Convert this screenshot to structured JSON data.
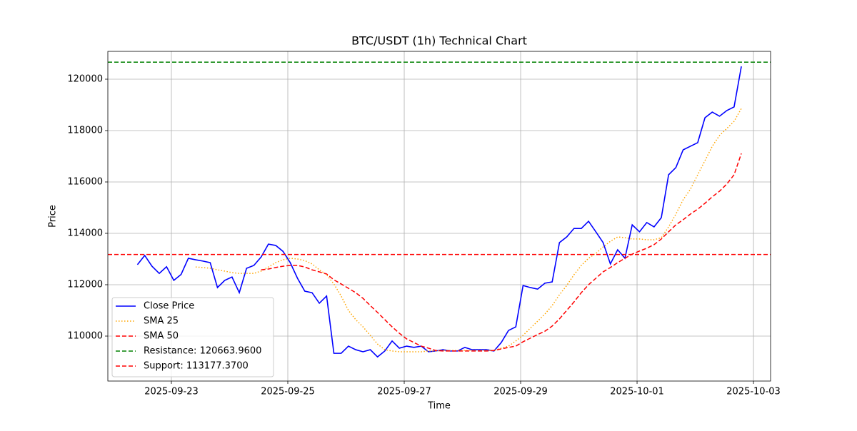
{
  "chart_data": {
    "type": "line",
    "title": "BTC/USDT (1h) Technical Chart",
    "x_label": "Time",
    "y_label": "Price",
    "x": [
      "2025-09-22 10:00",
      "2025-09-22 13:00",
      "2025-09-22 16:00",
      "2025-09-22 19:00",
      "2025-09-22 22:00",
      "2025-09-23 01:00",
      "2025-09-23 04:00",
      "2025-09-23 07:00",
      "2025-09-23 10:00",
      "2025-09-23 13:00",
      "2025-09-23 16:00",
      "2025-09-23 19:00",
      "2025-09-23 22:00",
      "2025-09-24 01:00",
      "2025-09-24 04:00",
      "2025-09-24 07:00",
      "2025-09-24 10:00",
      "2025-09-24 13:00",
      "2025-09-24 16:00",
      "2025-09-24 19:00",
      "2025-09-24 22:00",
      "2025-09-25 01:00",
      "2025-09-25 04:00",
      "2025-09-25 07:00",
      "2025-09-25 10:00",
      "2025-09-25 13:00",
      "2025-09-25 16:00",
      "2025-09-25 19:00",
      "2025-09-25 22:00",
      "2025-09-26 01:00",
      "2025-09-26 04:00",
      "2025-09-26 07:00",
      "2025-09-26 10:00",
      "2025-09-26 13:00",
      "2025-09-26 16:00",
      "2025-09-26 19:00",
      "2025-09-26 22:00",
      "2025-09-27 01:00",
      "2025-09-27 04:00",
      "2025-09-27 07:00",
      "2025-09-27 10:00",
      "2025-09-27 13:00",
      "2025-09-27 16:00",
      "2025-09-27 19:00",
      "2025-09-27 22:00",
      "2025-09-28 01:00",
      "2025-09-28 04:00",
      "2025-09-28 07:00",
      "2025-09-28 10:00",
      "2025-09-28 13:00",
      "2025-09-28 16:00",
      "2025-09-28 19:00",
      "2025-09-28 22:00",
      "2025-09-29 01:00",
      "2025-09-29 04:00",
      "2025-09-29 07:00",
      "2025-09-29 10:00",
      "2025-09-29 13:00",
      "2025-09-29 16:00",
      "2025-09-29 19:00",
      "2025-09-29 22:00",
      "2025-09-30 01:00",
      "2025-09-30 04:00",
      "2025-09-30 07:00",
      "2025-09-30 10:00",
      "2025-09-30 13:00",
      "2025-09-30 16:00",
      "2025-09-30 19:00",
      "2025-09-30 22:00",
      "2025-10-01 01:00",
      "2025-10-01 04:00",
      "2025-10-01 07:00",
      "2025-10-01 10:00",
      "2025-10-01 13:00",
      "2025-10-01 16:00",
      "2025-10-01 19:00",
      "2025-10-01 22:00",
      "2025-10-02 01:00",
      "2025-10-02 04:00",
      "2025-10-02 07:00",
      "2025-10-02 10:00",
      "2025-10-02 13:00",
      "2025-10-02 16:00",
      "2025-10-02 19:00"
    ],
    "series": [
      {
        "name": "Close Price",
        "color": "#0000ff",
        "style": "solid",
        "values": [
          112780,
          113140,
          112720,
          112440,
          112700,
          112170,
          112400,
          113030,
          112970,
          112920,
          112860,
          111890,
          112170,
          112300,
          111690,
          112640,
          112750,
          113080,
          113580,
          113530,
          113300,
          112860,
          112250,
          111750,
          111690,
          111280,
          111560,
          109330,
          109330,
          109610,
          109470,
          109390,
          109470,
          109190,
          109420,
          109810,
          109530,
          109610,
          109560,
          109610,
          109390,
          109420,
          109470,
          109420,
          109420,
          109560,
          109470,
          109470,
          109470,
          109420,
          109750,
          110220,
          110360,
          111970,
          111890,
          111830,
          112060,
          112110,
          113640,
          113860,
          114190,
          114190,
          114470,
          114060,
          113640,
          112810,
          113360,
          113030,
          114330,
          114060,
          114420,
          114250,
          114610,
          116280,
          116560,
          117250,
          117390,
          117530,
          118500,
          118720,
          118560,
          118780,
          118920,
          120500
        ]
      },
      {
        "name": "SMA 25",
        "color": "#ffa500",
        "style": "dotted",
        "values": [
          null,
          null,
          null,
          null,
          null,
          null,
          null,
          null,
          112690,
          112670,
          112640,
          112580,
          112530,
          112470,
          112440,
          112440,
          112440,
          112530,
          112690,
          112860,
          112970,
          113030,
          113000,
          112940,
          112810,
          112580,
          112390,
          112030,
          111560,
          111000,
          110640,
          110360,
          110030,
          109690,
          109470,
          109420,
          109390,
          109390,
          109390,
          109390,
          109420,
          109420,
          109440,
          109440,
          109440,
          109440,
          109440,
          109440,
          109440,
          109440,
          109530,
          109610,
          109810,
          110030,
          110310,
          110580,
          110860,
          111190,
          111610,
          111970,
          112390,
          112750,
          113030,
          113220,
          113470,
          113690,
          113860,
          113830,
          113780,
          113780,
          113750,
          113750,
          113830,
          114250,
          114750,
          115310,
          115720,
          116280,
          116830,
          117390,
          117810,
          118080,
          118360,
          118860
        ]
      },
      {
        "name": "SMA 50",
        "color": "#ff0000",
        "style": "dashed",
        "values": [
          null,
          null,
          null,
          null,
          null,
          null,
          null,
          null,
          null,
          null,
          null,
          null,
          null,
          null,
          null,
          null,
          null,
          112580,
          112610,
          112670,
          112720,
          112750,
          112750,
          112690,
          112580,
          112500,
          112420,
          112190,
          112030,
          111860,
          111690,
          111470,
          111190,
          110920,
          110640,
          110360,
          110110,
          109890,
          109750,
          109610,
          109530,
          109440,
          109420,
          109420,
          109420,
          109420,
          109420,
          109420,
          109420,
          109440,
          109500,
          109560,
          109610,
          109780,
          109920,
          110060,
          110190,
          110390,
          110670,
          111000,
          111330,
          111690,
          112000,
          112250,
          112500,
          112670,
          112860,
          113030,
          113190,
          113310,
          113420,
          113560,
          113780,
          114060,
          114330,
          114530,
          114750,
          114940,
          115170,
          115420,
          115640,
          115920,
          116280,
          117110
        ]
      }
    ],
    "hlines": [
      {
        "name": "Resistance: 120663.9600",
        "value": 120663.96,
        "color": "#008000",
        "style": "dashed"
      },
      {
        "name": "Support: 113177.3700",
        "value": 113177.37,
        "color": "#ff0000",
        "style": "dashed"
      }
    ],
    "xlim": [
      "2025-09-21 21:48",
      "2025-10-03 07:03"
    ],
    "xticks": [
      "2025-09-23",
      "2025-09-25",
      "2025-09-27",
      "2025-09-29",
      "2025-10-01",
      "2025-10-03"
    ],
    "ylim": [
      108250,
      121083
    ],
    "yticks": [
      110000,
      112000,
      114000,
      116000,
      118000,
      120000
    ],
    "grid": true,
    "legend": "lower left"
  }
}
